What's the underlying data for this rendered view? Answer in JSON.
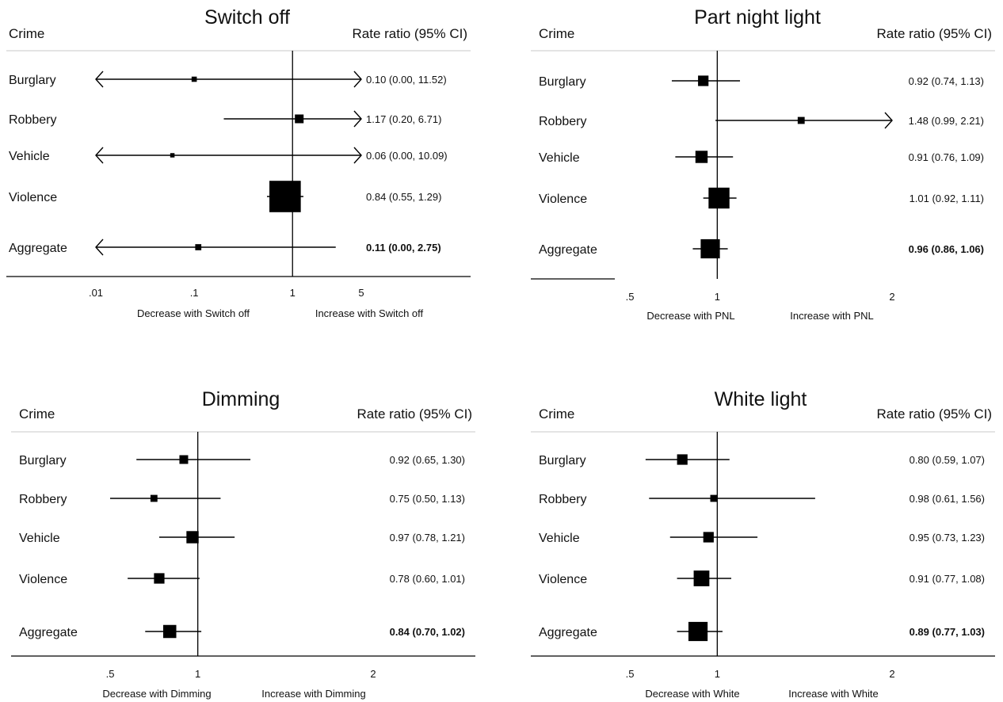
{
  "chart_data": [
    {
      "type": "forest",
      "title": "Switch off",
      "scale": "log",
      "header_left": "Crime",
      "header_right": "Rate ratio (95% CI)",
      "xlim": [
        0.01,
        12
      ],
      "ticks": [
        {
          "value": 0.01,
          "label": ".01"
        },
        {
          "value": 0.1,
          "label": ".1"
        },
        {
          "value": 1,
          "label": "1"
        },
        {
          "value": 5,
          "label": "5"
        }
      ],
      "direction_left": "Decrease with Switch off",
      "direction_right": "Increase with Switch off",
      "rows": [
        {
          "label": "Burglary",
          "rr": 0.1,
          "lo": 0.0,
          "hi": 11.52,
          "text": "0.10 (0.00, 11.52)",
          "bold": false,
          "weight": 0.6
        },
        {
          "label": "Robbery",
          "rr": 1.17,
          "lo": 0.2,
          "hi": 6.71,
          "text": "1.17 (0.20, 6.71)",
          "bold": false,
          "weight": 1.0
        },
        {
          "label": "Vehicle",
          "rr": 0.06,
          "lo": 0.0,
          "hi": 10.09,
          "text": "0.06 (0.00, 10.09)",
          "bold": false,
          "weight": 0.5
        },
        {
          "label": "Violence",
          "rr": 0.84,
          "lo": 0.55,
          "hi": 1.29,
          "text": "0.84 (0.55, 1.29)",
          "bold": false,
          "weight": 3.6
        },
        {
          "label": "Aggregate",
          "rr": 0.11,
          "lo": 0.0,
          "hi": 2.75,
          "text": "0.11 (0.00, 2.75)",
          "bold": true,
          "weight": 0.7
        }
      ]
    },
    {
      "type": "forest",
      "title": "Part night light",
      "scale": "linear",
      "header_left": "Crime",
      "header_right": "Rate ratio (95% CI)",
      "xlim": [
        0.3,
        2.5
      ],
      "ticks": [
        {
          "value": 0.5,
          "label": ".5"
        },
        {
          "value": 1,
          "label": "1"
        },
        {
          "value": 2,
          "label": "2"
        }
      ],
      "direction_left": "Decrease with PNL",
      "direction_right": "Increase with PNL",
      "rows": [
        {
          "label": "Burglary",
          "rr": 0.92,
          "lo": 0.74,
          "hi": 1.13,
          "text": "0.92 (0.74, 1.13)",
          "bold": false,
          "weight": 1.2
        },
        {
          "label": "Robbery",
          "rr": 1.48,
          "lo": 0.99,
          "hi": 2.21,
          "text": "1.48 (0.99, 2.21)",
          "bold": false,
          "weight": 0.8
        },
        {
          "label": "Vehicle",
          "rr": 0.91,
          "lo": 0.76,
          "hi": 1.09,
          "text": "0.91 (0.76, 1.09)",
          "bold": false,
          "weight": 1.4
        },
        {
          "label": "Violence",
          "rr": 1.01,
          "lo": 0.92,
          "hi": 1.11,
          "text": "1.01 (0.92, 1.11)",
          "bold": false,
          "weight": 2.4
        },
        {
          "label": "Aggregate",
          "rr": 0.96,
          "lo": 0.86,
          "hi": 1.06,
          "text": "0.96 (0.86, 1.06)",
          "bold": true,
          "weight": 2.2
        }
      ]
    },
    {
      "type": "forest",
      "title": "Dimming",
      "scale": "linear",
      "header_left": "Crime",
      "header_right": "Rate ratio (95% CI)",
      "xlim": [
        0.3,
        2.5
      ],
      "ticks": [
        {
          "value": 0.5,
          "label": ".5"
        },
        {
          "value": 1,
          "label": "1"
        },
        {
          "value": 2,
          "label": "2"
        }
      ],
      "direction_left": "Decrease with Dimming",
      "direction_right": "Increase with Dimming",
      "rows": [
        {
          "label": "Burglary",
          "rr": 0.92,
          "lo": 0.65,
          "hi": 1.3,
          "text": "0.92 (0.65, 1.30)",
          "bold": false,
          "weight": 1.0
        },
        {
          "label": "Robbery",
          "rr": 0.75,
          "lo": 0.5,
          "hi": 1.13,
          "text": "0.75 (0.50, 1.13)",
          "bold": false,
          "weight": 0.8
        },
        {
          "label": "Vehicle",
          "rr": 0.97,
          "lo": 0.78,
          "hi": 1.21,
          "text": "0.97 (0.78, 1.21)",
          "bold": false,
          "weight": 1.4
        },
        {
          "label": "Violence",
          "rr": 0.78,
          "lo": 0.6,
          "hi": 1.01,
          "text": "0.78 (0.60, 1.01)",
          "bold": false,
          "weight": 1.2
        },
        {
          "label": "Aggregate",
          "rr": 0.84,
          "lo": 0.7,
          "hi": 1.02,
          "text": "0.84 (0.70, 1.02)",
          "bold": true,
          "weight": 1.5
        }
      ]
    },
    {
      "type": "forest",
      "title": "White light",
      "scale": "linear",
      "header_left": "Crime",
      "header_right": "Rate ratio (95% CI)",
      "xlim": [
        0.3,
        2.5
      ],
      "ticks": [
        {
          "value": 0.5,
          "label": ".5"
        },
        {
          "value": 1,
          "label": "1"
        },
        {
          "value": 2,
          "label": "2"
        }
      ],
      "direction_left": "Decrease with White",
      "direction_right": "Increase with White",
      "rows": [
        {
          "label": "Burglary",
          "rr": 0.8,
          "lo": 0.59,
          "hi": 1.07,
          "text": "0.80 (0.59, 1.07)",
          "bold": false,
          "weight": 1.2
        },
        {
          "label": "Robbery",
          "rr": 0.98,
          "lo": 0.61,
          "hi": 1.56,
          "text": "0.98 (0.61, 1.56)",
          "bold": false,
          "weight": 0.8
        },
        {
          "label": "Vehicle",
          "rr": 0.95,
          "lo": 0.73,
          "hi": 1.23,
          "text": "0.95 (0.73, 1.23)",
          "bold": false,
          "weight": 1.2
        },
        {
          "label": "Violence",
          "rr": 0.91,
          "lo": 0.77,
          "hi": 1.08,
          "text": "0.91 (0.77, 1.08)",
          "bold": false,
          "weight": 1.8
        },
        {
          "label": "Aggregate",
          "rr": 0.89,
          "lo": 0.77,
          "hi": 1.03,
          "text": "0.89 (0.77, 1.03)",
          "bold": true,
          "weight": 2.2
        }
      ]
    }
  ]
}
